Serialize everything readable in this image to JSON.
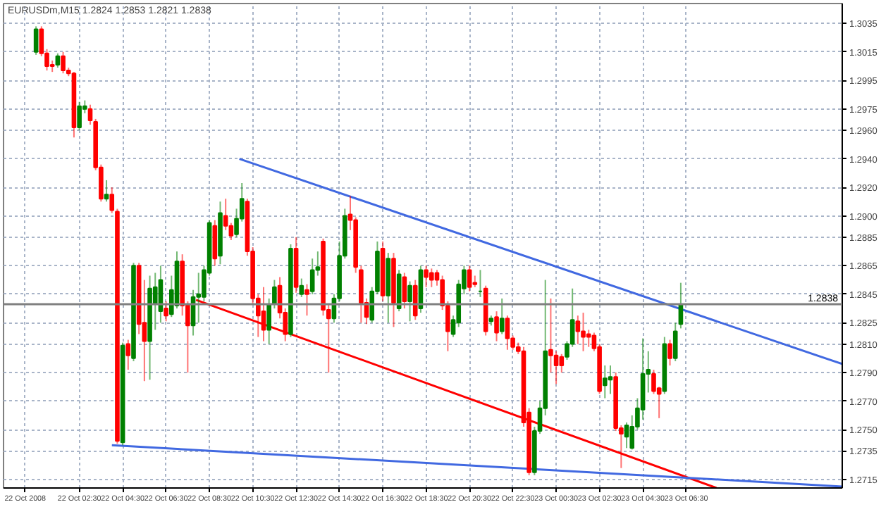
{
  "chart_data": {
    "type": "candlestick",
    "title": "EURUSDm,M15  1.2824 1.2853 1.2821 1.2838",
    "x": [
      "2008-10-22T00:30",
      "2008-10-22T00:45",
      "2008-10-22T01:00",
      "2008-10-22T01:15",
      "2008-10-22T01:30",
      "2008-10-22T01:45",
      "2008-10-22T02:00",
      "2008-10-22T02:15",
      "2008-10-22T02:30",
      "2008-10-22T02:45",
      "2008-10-22T03:00",
      "2008-10-22T03:15",
      "2008-10-22T03:30",
      "2008-10-22T03:45",
      "2008-10-22T04:00",
      "2008-10-22T04:15",
      "2008-10-22T04:30",
      "2008-10-22T04:45",
      "2008-10-22T05:00",
      "2008-10-22T05:15",
      "2008-10-22T05:30",
      "2008-10-22T05:45",
      "2008-10-22T06:00",
      "2008-10-22T06:15",
      "2008-10-22T06:30",
      "2008-10-22T06:45",
      "2008-10-22T07:00",
      "2008-10-22T07:15",
      "2008-10-22T07:30",
      "2008-10-22T07:45",
      "2008-10-22T08:00",
      "2008-10-22T08:15",
      "2008-10-22T08:30",
      "2008-10-22T08:45",
      "2008-10-22T09:00",
      "2008-10-22T09:15",
      "2008-10-22T09:30",
      "2008-10-22T09:45",
      "2008-10-22T10:00",
      "2008-10-22T10:15",
      "2008-10-22T10:30",
      "2008-10-22T10:45",
      "2008-10-22T11:00",
      "2008-10-22T11:15",
      "2008-10-22T11:30",
      "2008-10-22T11:45",
      "2008-10-22T12:00",
      "2008-10-22T12:15",
      "2008-10-22T12:30",
      "2008-10-22T12:45",
      "2008-10-22T13:00",
      "2008-10-22T13:15",
      "2008-10-22T13:30",
      "2008-10-22T13:45",
      "2008-10-22T14:00",
      "2008-10-22T14:15",
      "2008-10-22T14:30",
      "2008-10-22T14:45",
      "2008-10-22T15:00",
      "2008-10-22T15:15",
      "2008-10-22T15:30",
      "2008-10-22T15:45",
      "2008-10-22T16:00",
      "2008-10-22T16:15",
      "2008-10-22T16:30",
      "2008-10-22T16:45",
      "2008-10-22T17:00",
      "2008-10-22T17:15",
      "2008-10-22T17:30",
      "2008-10-22T17:45",
      "2008-10-22T18:00",
      "2008-10-22T18:15",
      "2008-10-22T18:30",
      "2008-10-22T18:45",
      "2008-10-22T19:00",
      "2008-10-22T19:15",
      "2008-10-22T19:30",
      "2008-10-22T19:45",
      "2008-10-22T20:00",
      "2008-10-22T20:15",
      "2008-10-22T20:30",
      "2008-10-22T20:45",
      "2008-10-22T21:00",
      "2008-10-22T21:15",
      "2008-10-22T21:30",
      "2008-10-22T21:45",
      "2008-10-22T22:00",
      "2008-10-22T22:15",
      "2008-10-22T22:30",
      "2008-10-22T22:45",
      "2008-10-22T23:00",
      "2008-10-22T23:15",
      "2008-10-22T23:30",
      "2008-10-22T23:45",
      "2008-10-23T00:00",
      "2008-10-23T00:15",
      "2008-10-23T00:30",
      "2008-10-23T00:45",
      "2008-10-23T01:00",
      "2008-10-23T01:15",
      "2008-10-23T01:30",
      "2008-10-23T01:45",
      "2008-10-23T02:00",
      "2008-10-23T02:15",
      "2008-10-23T02:30",
      "2008-10-23T02:45",
      "2008-10-23T03:00",
      "2008-10-23T03:15",
      "2008-10-23T03:30",
      "2008-10-23T03:45",
      "2008-10-23T04:00",
      "2008-10-23T04:15",
      "2008-10-23T04:30",
      "2008-10-23T04:45",
      "2008-10-23T05:00",
      "2008-10-23T05:15",
      "2008-10-23T05:30",
      "2008-10-23T05:45",
      "2008-10-23T06:00",
      "2008-10-23T06:15"
    ],
    "ohlc": [
      [
        1.3015,
        1.3033,
        1.3013,
        1.3031
      ],
      [
        1.3031,
        1.3033,
        1.3012,
        1.3014
      ],
      [
        1.3014,
        1.3017,
        1.3002,
        1.3005
      ],
      [
        1.3006,
        1.3009,
        1.3001,
        1.3005
      ],
      [
        1.3006,
        1.3014,
        1.3004,
        1.3012
      ],
      [
        1.3012,
        1.3015,
        1.3,
        1.3002
      ],
      [
        1.3002,
        1.3004,
        1.2998,
        1.3
      ],
      [
        1.3,
        1.3001,
        1.2955,
        1.2962
      ],
      [
        1.2962,
        1.298,
        1.296,
        1.2977
      ],
      [
        1.2975,
        1.2981,
        1.2972,
        1.2977
      ],
      [
        1.2975,
        1.2978,
        1.2964,
        1.2967
      ],
      [
        1.2966,
        1.2968,
        1.2932,
        1.2934
      ],
      [
        1.2934,
        1.2936,
        1.291,
        1.2912
      ],
      [
        1.2912,
        1.2925,
        1.291,
        1.2915
      ],
      [
        1.2915,
        1.292,
        1.2902,
        1.2904
      ],
      [
        1.2903,
        1.2905,
        1.274,
        1.2742
      ],
      [
        1.2741,
        1.2811,
        1.2739,
        1.2809
      ],
      [
        1.281,
        1.2813,
        1.2792,
        1.2802
      ],
      [
        1.28,
        1.2867,
        1.2798,
        1.2865
      ],
      [
        1.2865,
        1.2867,
        1.2817,
        1.2824
      ],
      [
        1.2825,
        1.2855,
        1.2784,
        1.2812
      ],
      [
        1.2812,
        1.2858,
        1.2785,
        1.2849
      ],
      [
        1.2838,
        1.286,
        1.282,
        1.285
      ],
      [
        1.2833,
        1.2865,
        1.2825,
        1.2855
      ],
      [
        1.2835,
        1.284,
        1.2826,
        1.283
      ],
      [
        1.2831,
        1.2858,
        1.2829,
        1.2848
      ],
      [
        1.2837,
        1.2875,
        1.2835,
        1.2868
      ],
      [
        1.2868,
        1.2873,
        1.283,
        1.2837
      ],
      [
        1.2838,
        1.284,
        1.279,
        1.2823
      ],
      [
        1.2823,
        1.2848,
        1.2816,
        1.2843
      ],
      [
        1.2843,
        1.286,
        1.2825,
        1.2845
      ],
      [
        1.2843,
        1.2865,
        1.284,
        1.2862
      ],
      [
        1.286,
        1.2897,
        1.2858,
        1.2895
      ],
      [
        1.2893,
        1.2897,
        1.2865,
        1.287
      ],
      [
        1.2872,
        1.291,
        1.2866,
        1.2902
      ],
      [
        1.29,
        1.2912,
        1.289,
        1.2893
      ],
      [
        1.2893,
        1.2895,
        1.2883,
        1.2886
      ],
      [
        1.2887,
        1.2905,
        1.2885,
        1.2898
      ],
      [
        1.2898,
        1.2923,
        1.2896,
        1.2912
      ],
      [
        1.291,
        1.2912,
        1.2872,
        1.2875
      ],
      [
        1.2875,
        1.2878,
        1.2838,
        1.2842
      ],
      [
        1.2842,
        1.2845,
        1.2815,
        1.283
      ],
      [
        1.2833,
        1.285,
        1.2812,
        1.282
      ],
      [
        1.282,
        1.2842,
        1.281,
        1.2838
      ],
      [
        1.2838,
        1.2855,
        1.2835,
        1.285
      ],
      [
        1.2851,
        1.2857,
        1.2828,
        1.2832
      ],
      [
        1.2832,
        1.2835,
        1.2812,
        1.2817
      ],
      [
        1.2817,
        1.288,
        1.2815,
        1.2877
      ],
      [
        1.2877,
        1.2885,
        1.2846,
        1.285
      ],
      [
        1.2845,
        1.2856,
        1.2843,
        1.2851
      ],
      [
        1.2848,
        1.2852,
        1.283,
        1.2845
      ],
      [
        1.2847,
        1.287,
        1.2845,
        1.2862
      ],
      [
        1.2862,
        1.2875,
        1.2858,
        1.2864
      ],
      [
        1.2882,
        1.2884,
        1.283,
        1.2834
      ],
      [
        1.2834,
        1.2838,
        1.279,
        1.2828
      ],
      [
        1.2828,
        1.2845,
        1.2825,
        1.2842
      ],
      [
        1.2842,
        1.2882,
        1.284,
        1.2872
      ],
      [
        1.2872,
        1.2905,
        1.287,
        1.29
      ],
      [
        1.2901,
        1.2914,
        1.289,
        1.2897
      ],
      [
        1.2897,
        1.2899,
        1.286,
        1.2864
      ],
      [
        1.2862,
        1.2865,
        1.2825,
        1.2839
      ],
      [
        1.2839,
        1.2842,
        1.2824,
        1.2829
      ],
      [
        1.2827,
        1.285,
        1.2825,
        1.2847
      ],
      [
        1.2847,
        1.2882,
        1.2845,
        1.2875
      ],
      [
        1.2877,
        1.2882,
        1.284,
        1.2844
      ],
      [
        1.2844,
        1.2874,
        1.2825,
        1.287
      ],
      [
        1.287,
        1.2874,
        1.2822,
        1.2839
      ],
      [
        1.2835,
        1.2862,
        1.2833,
        1.2859
      ],
      [
        1.2857,
        1.286,
        1.2835,
        1.284
      ],
      [
        1.284,
        1.2854,
        1.2826,
        1.2851
      ],
      [
        1.2851,
        1.2855,
        1.2827,
        1.283
      ],
      [
        1.2835,
        1.2865,
        1.2832,
        1.2862
      ],
      [
        1.2862,
        1.2865,
        1.285,
        1.2857
      ],
      [
        1.286,
        1.2863,
        1.285,
        1.2855
      ],
      [
        1.286,
        1.2862,
        1.2851,
        1.2855
      ],
      [
        1.2855,
        1.2858,
        1.2834,
        1.2837
      ],
      [
        1.2837,
        1.284,
        1.2805,
        1.2819
      ],
      [
        1.2817,
        1.283,
        1.2815,
        1.2827
      ],
      [
        1.2825,
        1.2855,
        1.2822,
        1.2852
      ],
      [
        1.2849,
        1.2865,
        1.2845,
        1.2862
      ],
      [
        1.2862,
        1.2865,
        1.2847,
        1.285
      ],
      [
        1.2853,
        1.2858,
        1.285,
        1.2852
      ],
      [
        1.2847,
        1.2862,
        1.2843,
        1.2847
      ],
      [
        1.2849,
        1.2851,
        1.2816,
        1.2819
      ],
      [
        1.2826,
        1.283,
        1.2823,
        1.2828
      ],
      [
        1.2829,
        1.2833,
        1.2812,
        1.2818
      ],
      [
        1.2819,
        1.2842,
        1.2817,
        1.2828
      ],
      [
        1.2828,
        1.283,
        1.2806,
        1.2814
      ],
      [
        1.2814,
        1.2816,
        1.2806,
        1.2808
      ],
      [
        1.2808,
        1.2811,
        1.2803,
        1.2805
      ],
      [
        1.2805,
        1.2808,
        1.2752,
        1.2755
      ],
      [
        1.2762,
        1.2765,
        1.2718,
        1.272
      ],
      [
        1.272,
        1.2752,
        1.2718,
        1.2749
      ],
      [
        1.2749,
        1.277,
        1.2747,
        1.2765
      ],
      [
        1.2765,
        1.2855,
        1.276,
        1.2805
      ],
      [
        1.2806,
        1.2842,
        1.279,
        1.2802
      ],
      [
        1.2802,
        1.2805,
        1.2782,
        1.2795
      ],
      [
        1.2801,
        1.2803,
        1.279,
        1.2795
      ],
      [
        1.2801,
        1.2812,
        1.2799,
        1.281
      ],
      [
        1.281,
        1.2849,
        1.2808,
        1.2827
      ],
      [
        1.2826,
        1.283,
        1.281,
        1.2819
      ],
      [
        1.2819,
        1.2832,
        1.2805,
        1.2815
      ],
      [
        1.2817,
        1.282,
        1.2808,
        1.2815
      ],
      [
        1.2816,
        1.2818,
        1.2805,
        1.2807
      ],
      [
        1.2808,
        1.281,
        1.2775,
        1.2777
      ],
      [
        1.2781,
        1.2795,
        1.2772,
        1.2786
      ],
      [
        1.2785,
        1.2795,
        1.2775,
        1.2787
      ],
      [
        1.2787,
        1.279,
        1.2749,
        1.2751
      ],
      [
        1.2751,
        1.2753,
        1.2723,
        1.2747
      ],
      [
        1.2745,
        1.2755,
        1.2737,
        1.2753
      ],
      [
        1.2737,
        1.276,
        1.2736,
        1.2752
      ],
      [
        1.2752,
        1.2772,
        1.275,
        1.2765
      ],
      [
        1.2764,
        1.2814,
        1.2757,
        1.2789
      ],
      [
        1.2789,
        1.2805,
        1.2776,
        1.2792
      ],
      [
        1.2789,
        1.2792,
        1.2775,
        1.2777
      ],
      [
        1.2779,
        1.278,
        1.2758,
        1.2775
      ],
      [
        1.2777,
        1.2815,
        1.2775,
        1.281
      ],
      [
        1.281,
        1.2813,
        1.2795,
        1.28
      ],
      [
        1.28,
        1.2825,
        1.2798,
        1.2819
      ],
      [
        1.2824,
        1.2853,
        1.2821,
        1.2838
      ]
    ],
    "colors": [
      "#008000",
      "#ff0000",
      "#ff0000",
      "#ff0000",
      "#008000",
      "#ff0000",
      "#ff0000",
      "#ff0000",
      "#008000",
      "#008000",
      "#ff0000",
      "#ff0000",
      "#ff0000",
      "#008000",
      "#ff0000",
      "#ff0000",
      "#008000",
      "#ff0000",
      "#008000",
      "#ff0000",
      "#ff0000",
      "#008000",
      "#008000",
      "#008000",
      "#ff0000",
      "#008000",
      "#008000",
      "#ff0000",
      "#ff0000",
      "#008000",
      "#008000",
      "#008000",
      "#008000",
      "#ff0000",
      "#008000",
      "#ff0000",
      "#ff0000",
      "#008000",
      "#008000",
      "#ff0000",
      "#ff0000",
      "#ff0000",
      "#ff0000",
      "#008000",
      "#008000",
      "#ff0000",
      "#ff0000",
      "#008000",
      "#ff0000",
      "#008000",
      "#ff0000",
      "#008000",
      "#008000",
      "#ff0000",
      "#ff0000",
      "#008000",
      "#008000",
      "#008000",
      "#ff0000",
      "#ff0000",
      "#ff0000",
      "#ff0000",
      "#008000",
      "#008000",
      "#ff0000",
      "#008000",
      "#ff0000",
      "#008000",
      "#ff0000",
      "#008000",
      "#ff0000",
      "#008000",
      "#ff0000",
      "#ff0000",
      "#ff0000",
      "#ff0000",
      "#ff0000",
      "#008000",
      "#008000",
      "#008000",
      "#ff0000",
      "#ff0000",
      "#008000",
      "#ff0000",
      "#008000",
      "#ff0000",
      "#008000",
      "#ff0000",
      "#ff0000",
      "#ff0000",
      "#ff0000",
      "#ff0000",
      "#008000",
      "#008000",
      "#008000",
      "#ff0000",
      "#ff0000",
      "#ff0000",
      "#008000",
      "#008000",
      "#ff0000",
      "#ff0000",
      "#ff0000",
      "#ff0000",
      "#ff0000",
      "#008000",
      "#008000",
      "#ff0000",
      "#ff0000",
      "#008000",
      "#008000",
      "#008000",
      "#008000",
      "#008000",
      "#ff0000",
      "#ff0000",
      "#008000",
      "#ff0000",
      "#008000",
      "#008000"
    ],
    "series": [
      {
        "type": "line",
        "color": "#4169e1",
        "x": [
          "2008-10-22T09:53",
          "2008-10-23T13:42"
        ],
        "values": [
          1.294,
          1.2796
        ]
      },
      {
        "type": "line",
        "color": "#ff0000",
        "x": [
          "2008-10-22T07:53",
          "2008-10-23T07:54"
        ],
        "values": [
          1.2841,
          1.2709
        ]
      },
      {
        "type": "line",
        "color": "#4169e1",
        "x": [
          "2008-10-22T04:00",
          "2008-10-23T13:42"
        ],
        "values": [
          1.2739,
          1.271
        ]
      }
    ],
    "ref_lines": [
      {
        "axis": "y",
        "value": 1.2838,
        "label": "1.2838",
        "color": "#808080"
      }
    ],
    "xlim": [
      "2008-10-21T23:00",
      "2008-10-23T13:42"
    ],
    "xticks": [
      {
        "value": "2008-10-22T00:00",
        "label": "22 Oct 2008"
      },
      {
        "value": "2008-10-22T02:30",
        "label": "22 Oct 02:30"
      },
      {
        "value": "2008-10-22T04:30",
        "label": "22 Oct 04:30"
      },
      {
        "value": "2008-10-22T06:30",
        "label": "22 Oct 06:30"
      },
      {
        "value": "2008-10-22T08:30",
        "label": "22 Oct 08:30"
      },
      {
        "value": "2008-10-22T10:30",
        "label": "22 Oct 10:30"
      },
      {
        "value": "2008-10-22T12:30",
        "label": "22 Oct 12:30"
      },
      {
        "value": "2008-10-22T14:30",
        "label": "22 Oct 14:30"
      },
      {
        "value": "2008-10-22T16:30",
        "label": "22 Oct 16:30"
      },
      {
        "value": "2008-10-22T18:30",
        "label": "22 Oct 18:30"
      },
      {
        "value": "2008-10-22T20:30",
        "label": "22 Oct 20:30"
      },
      {
        "value": "2008-10-22T22:30",
        "label": "22 Oct 22:30"
      },
      {
        "value": "2008-10-23T00:30",
        "label": "23 Oct 00:30"
      },
      {
        "value": "2008-10-23T02:30",
        "label": "23 Oct 02:30"
      },
      {
        "value": "2008-10-23T04:30",
        "label": "23 Oct 04:30"
      },
      {
        "value": "2008-10-23T06:30",
        "label": "23 Oct 06:30"
      }
    ],
    "ylim": [
      1.2709,
      1.3049
    ],
    "yticks": [
      {
        "value": 1.3035,
        "label": "1.3035"
      },
      {
        "value": 1.3015,
        "label": "1.3015"
      },
      {
        "value": 1.2995,
        "label": "1.2995"
      },
      {
        "value": 1.2975,
        "label": "1.2975"
      },
      {
        "value": 1.296,
        "label": "1.2960"
      },
      {
        "value": 1.294,
        "label": "1.2940"
      },
      {
        "value": 1.292,
        "label": "1.2920"
      },
      {
        "value": 1.29,
        "label": "1.2900"
      },
      {
        "value": 1.2885,
        "label": "1.2885"
      },
      {
        "value": 1.2865,
        "label": "1.2865"
      },
      {
        "value": 1.2845,
        "label": "1.2845"
      },
      {
        "value": 1.2825,
        "label": "1.2825"
      },
      {
        "value": 1.281,
        "label": "1.2810"
      },
      {
        "value": 1.279,
        "label": "1.2790"
      },
      {
        "value": 1.277,
        "label": "1.2770"
      },
      {
        "value": 1.275,
        "label": "1.2750"
      },
      {
        "value": 1.2735,
        "label": "1.2735"
      },
      {
        "value": 1.2715,
        "label": "1.2715"
      }
    ],
    "grid": true
  }
}
